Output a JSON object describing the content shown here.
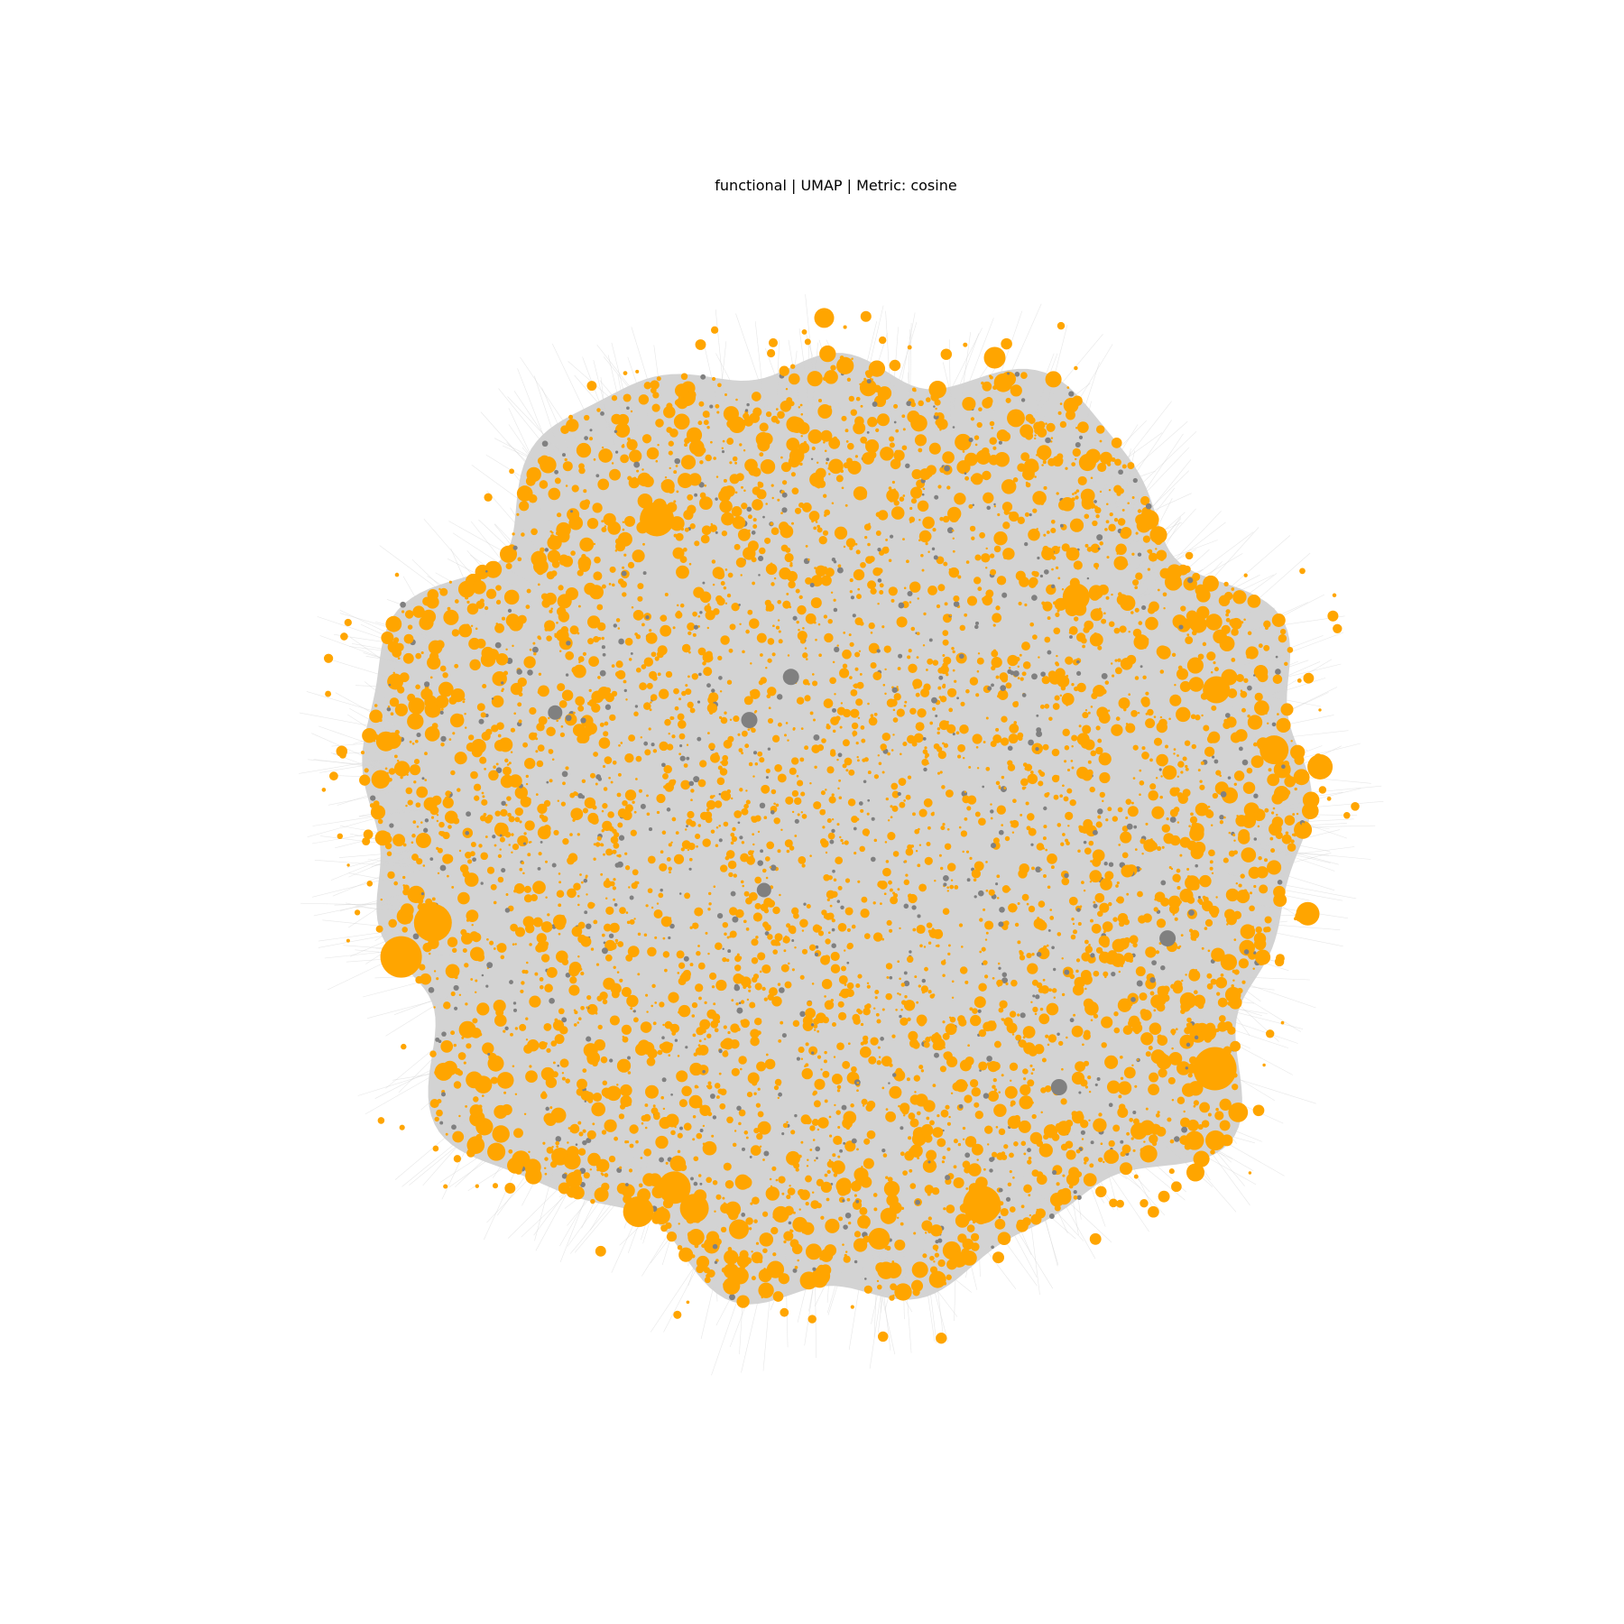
{
  "chart_data": {
    "type": "scatter",
    "subtype": "network-graph-embedding",
    "title": "functional | UMAP | Metric: cosine",
    "xlabel": "",
    "ylabel": "",
    "axes_visible": false,
    "grid": false,
    "legend": "none",
    "colors": {
      "node_primary": "#FFA500",
      "node_secondary": "#808080",
      "edges": "#D3D3D3",
      "background": "#FFFFFF"
    },
    "node_groups": [
      {
        "color_key": "node_primary",
        "share": 0.88
      },
      {
        "color_key": "node_secondary",
        "share": 0.12
      }
    ],
    "cloud": {
      "center": [
        0.0,
        0.0
      ],
      "radius": 1.0
    },
    "highlight_nodes": [
      {
        "x": -0.915,
        "y": -0.283,
        "size": 23,
        "group": "node_primary"
      },
      {
        "x": -0.848,
        "y": -0.211,
        "size": 21,
        "group": "node_primary"
      },
      {
        "x": 0.803,
        "y": -0.519,
        "size": 24,
        "group": "node_primary"
      },
      {
        "x": 0.311,
        "y": -0.806,
        "size": 21,
        "group": "node_primary"
      },
      {
        "x": -0.414,
        "y": -0.821,
        "size": 17,
        "group": "node_primary"
      },
      {
        "x": -0.338,
        "y": -0.77,
        "size": 18,
        "group": "node_primary"
      },
      {
        "x": -0.296,
        "y": -0.814,
        "size": 16,
        "group": "node_primary"
      },
      {
        "x": -0.375,
        "y": 0.641,
        "size": 19,
        "group": "node_primary"
      },
      {
        "x": 1.025,
        "y": 0.118,
        "size": 14,
        "group": "node_primary"
      },
      {
        "x": 0.999,
        "y": -0.192,
        "size": 13,
        "group": "node_primary"
      },
      {
        "x": 0.928,
        "y": 0.154,
        "size": 16,
        "group": "node_primary"
      },
      {
        "x": 0.51,
        "y": 0.477,
        "size": 15,
        "group": "node_primary"
      },
      {
        "x": 0.806,
        "y": 0.281,
        "size": 15,
        "group": "node_primary"
      },
      {
        "x": 0.094,
        "y": -0.878,
        "size": 12,
        "group": "node_primary"
      },
      {
        "x": -0.022,
        "y": 1.066,
        "size": 11,
        "group": "node_primary"
      },
      {
        "x": 0.338,
        "y": 0.982,
        "size": 12,
        "group": "node_primary"
      },
      {
        "x": -0.947,
        "y": 0.172,
        "size": 11,
        "group": "node_primary"
      },
      {
        "x": -0.202,
        "y": -0.858,
        "size": 11,
        "group": "node_primary"
      },
      {
        "x": 0.762,
        "y": -0.738,
        "size": 10,
        "group": "node_primary"
      },
      {
        "x": 0.664,
        "y": 0.64,
        "size": 11,
        "group": "node_primary"
      },
      {
        "x": -0.092,
        "y": 0.308,
        "size": 9,
        "group": "node_secondary"
      },
      {
        "x": -0.18,
        "y": 0.217,
        "size": 9,
        "group": "node_secondary"
      },
      {
        "x": -0.59,
        "y": 0.233,
        "size": 8,
        "group": "node_secondary"
      },
      {
        "x": 0.474,
        "y": -0.558,
        "size": 9,
        "group": "node_secondary"
      },
      {
        "x": 0.703,
        "y": -0.244,
        "size": 9,
        "group": "node_secondary"
      },
      {
        "x": -0.149,
        "y": -0.142,
        "size": 8,
        "group": "node_secondary"
      }
    ]
  }
}
